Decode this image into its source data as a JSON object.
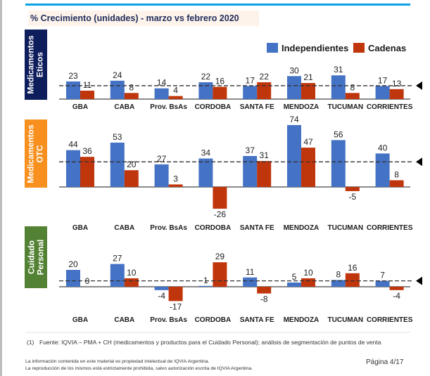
{
  "header": {
    "title": "% Crecimiento (unidades) - marzo vs febrero 2020"
  },
  "legend": {
    "items": [
      {
        "label": "Independientes",
        "color": "#4472c4"
      },
      {
        "label": "Cadenas",
        "color": "#c0360c"
      }
    ]
  },
  "segments": [
    {
      "label_line1": "Medicamentos",
      "label_line2": "Eticos",
      "color": "#0e1d5c"
    },
    {
      "label_line1": "Medicamentos",
      "label_line2": "OTC",
      "color": "#f7901e"
    },
    {
      "label_line1": "Cuidado",
      "label_line2": "Personal",
      "color": "#548235"
    }
  ],
  "chart_data": [
    {
      "type": "bar",
      "title": "Medicamentos Eticos",
      "categories": [
        "GBA",
        "CABA",
        "Prov. BsAs",
        "CORDOBA",
        "SANTA FE",
        "MENDOZA",
        "TUCUMAN",
        "CORRIENTES"
      ],
      "series": [
        {
          "name": "Independientes",
          "values": [
            23,
            24,
            14,
            22,
            17,
            30,
            31,
            17
          ]
        },
        {
          "name": "Cadenas",
          "values": [
            11,
            8,
            4,
            16,
            22,
            21,
            8,
            13
          ]
        }
      ],
      "reference_line": 17.5,
      "ylim": [
        0,
        35
      ],
      "xlabel": "",
      "ylabel": ""
    },
    {
      "type": "bar",
      "title": "Medicamentos OTC",
      "categories": [
        "GBA",
        "CABA",
        "Prov. BsAs",
        "CORDOBA",
        "SANTA FE",
        "MENDOZA",
        "TUCUMAN",
        "CORRIENTES"
      ],
      "series": [
        {
          "name": "Independientes",
          "values": [
            44,
            53,
            27,
            34,
            37,
            74,
            56,
            40
          ]
        },
        {
          "name": "Cadenas",
          "values": [
            36,
            20,
            3,
            -26,
            31,
            47,
            -5,
            8
          ]
        }
      ],
      "reference_line": 30,
      "ylim": [
        -30,
        80
      ],
      "xlabel": "",
      "ylabel": ""
    },
    {
      "type": "bar",
      "title": "Cuidado Personal",
      "categories": [
        "GBA",
        "CABA",
        "Prov. BsAs",
        "CORDOBA",
        "SANTA FE",
        "MENDOZA",
        "TUCUMAN",
        "CORRIENTES"
      ],
      "series": [
        {
          "name": "Independientes",
          "values": [
            20,
            27,
            -4,
            1,
            11,
            5,
            8,
            7
          ]
        },
        {
          "name": "Cadenas",
          "values": [
            0,
            10,
            -17,
            29,
            -8,
            10,
            16,
            -4
          ]
        }
      ],
      "reference_line": 7,
      "ylim": [
        -20,
        35
      ],
      "xlabel": "",
      "ylabel": ""
    }
  ],
  "footer": {
    "footnote_number": "(1)",
    "footnote_text": "Fuente: IQVIA – PMA + CH (medicamentos y productos para el Cuidado Personal); análisis de segmentación de puntos de venta",
    "disclaimer_line1": "La información contenida en este material es propiedad intelectual de IQVIA Argentina.",
    "disclaimer_line2": "La reproducción de los mismos está estrictamente prohibida, salvo autorización escrita de IQVIA Argentina.",
    "page": "Página 4/17"
  }
}
